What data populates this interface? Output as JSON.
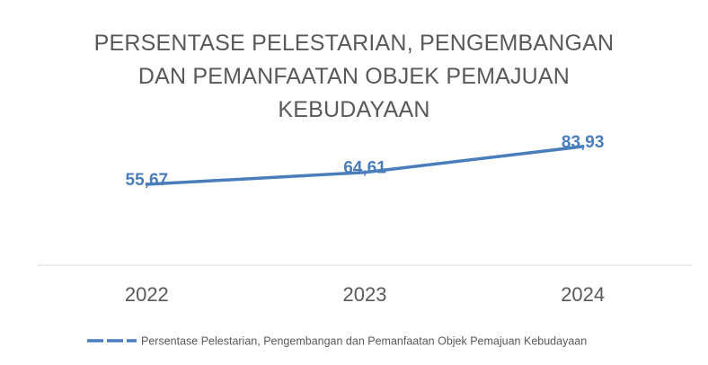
{
  "chart_data": {
    "type": "line",
    "title": "PERSENTASE PELESTARIAN, PENGEMBANGAN DAN PEMANFAATAN OBJEK PEMAJUAN KEBUDAYAAN",
    "categories": [
      "2022",
      "2023",
      "2024"
    ],
    "series": [
      {
        "name": "Persentase Pelestarian, Pengembangan dan Pemanfaatan Objek Pemajuan Kebudayaan",
        "color": "#4a7ebb",
        "values": [
          55.67,
          64.61,
          83.93
        ],
        "value_labels": [
          "55,67",
          "64,61",
          "83,93"
        ]
      }
    ],
    "ylim": [
      0,
      100
    ],
    "legend": "bottom"
  }
}
